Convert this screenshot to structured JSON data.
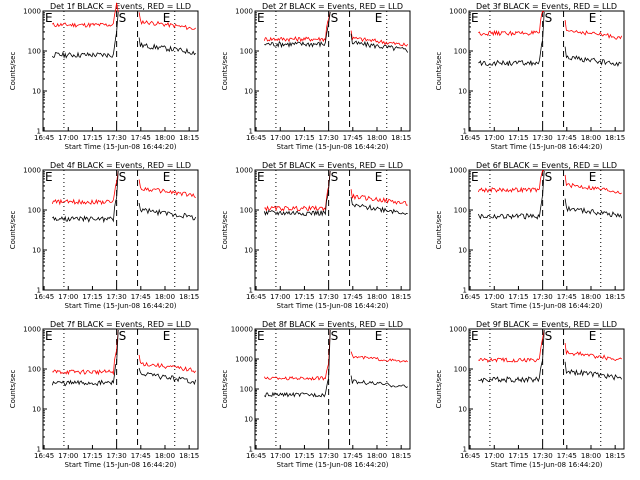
{
  "chart_data": {
    "type": "line",
    "yscale": "log",
    "ylim": [
      1,
      1000
    ],
    "y_ticks": [
      "1",
      "10",
      "100",
      "1000"
    ],
    "x_ticks": [
      "16:45",
      "17:00",
      "17:15",
      "17:30",
      "17:45",
      "18:00",
      "18:15"
    ],
    "xlabel": "Start Time (15-Jun-08 16:44:20)",
    "ylabel": "Counts/sec",
    "colors": {
      "events": "#000000",
      "lld": "#ff0000"
    },
    "markers": {
      "eclipse_start": "E",
      "saa": "S",
      "eclipse_end": "E"
    },
    "panels": [
      {
        "title": "Det 1f BLACK = Events, RED = LLD",
        "ymax_label": "1000",
        "events": 80,
        "lld": 450,
        "events_after": 140,
        "lld_after": 550
      },
      {
        "title": "Det 2f BLACK = Events, RED = LLD",
        "ymax_label": "1000",
        "events": 150,
        "lld": 200,
        "events_after": 160,
        "lld_after": 210
      },
      {
        "title": "Det 3f BLACK = Events, RED = LLD",
        "ymax_label": "1000",
        "events": 50,
        "lld": 280,
        "events_after": 70,
        "lld_after": 330
      },
      {
        "title": "Det 4f BLACK = Events, RED = LLD",
        "ymax_label": "1000",
        "events": 60,
        "lld": 160,
        "events_after": 100,
        "lld_after": 350
      },
      {
        "title": "Det 5f BLACK = Events, RED = LLD",
        "ymax_label": "1000",
        "events": 85,
        "lld": 110,
        "events_after": 130,
        "lld_after": 220
      },
      {
        "title": "Det 6f BLACK = Events, RED = LLD",
        "ymax_label": "1000",
        "events": 70,
        "lld": 320,
        "events_after": 110,
        "lld_after": 430
      },
      {
        "title": "Det 7f BLACK = Events, RED = LLD",
        "ymax_label": "1000",
        "events": 45,
        "lld": 85,
        "events_after": 75,
        "lld_after": 140
      },
      {
        "title": "Det 8f BLACK = Events, RED = LLD",
        "ymax_label": "10000",
        "events": 65,
        "lld": 230,
        "events_after": 180,
        "lld_after": 1200
      },
      {
        "title": "Det 9f BLACK = Events, RED = LLD",
        "ymax_label": "1000",
        "events": 55,
        "lld": 170,
        "events_after": 90,
        "lld_after": 260
      }
    ]
  }
}
